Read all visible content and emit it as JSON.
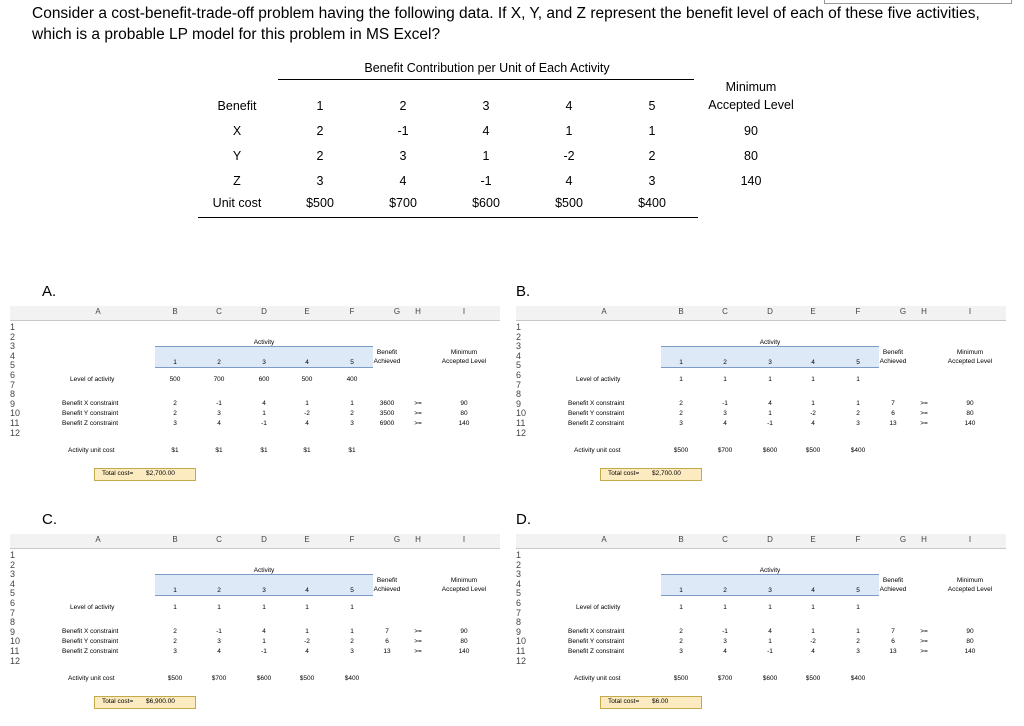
{
  "question": "Consider a cost-benefit-trade-off problem having the following data. If X, Y, and Z represent the benefit level of each of these five activities, which is a probable LP model for this problem in MS Excel?",
  "data_table": {
    "group_header": "Benefit Contribution per Unit of Each Activity",
    "min_header": "Minimum Accepted Level",
    "row_label_header": "Benefit",
    "activities": [
      "1",
      "2",
      "3",
      "4",
      "5"
    ],
    "rows": [
      {
        "label": "X",
        "values": [
          "2",
          "-1",
          "4",
          "1",
          "1"
        ],
        "min": "90"
      },
      {
        "label": "Y",
        "values": [
          "2",
          "3",
          "1",
          "-2",
          "2"
        ],
        "min": "80"
      },
      {
        "label": "Z",
        "values": [
          "3",
          "4",
          "-1",
          "4",
          "3"
        ],
        "min": "140"
      }
    ],
    "cost_label": "Unit cost",
    "costs": [
      "$500",
      "$700",
      "$600",
      "$500",
      "$400"
    ]
  },
  "sheet_common": {
    "col_letters": [
      "A",
      "B",
      "C",
      "D",
      "E",
      "F",
      "G",
      "H",
      "I"
    ],
    "row_numbers": [
      "1",
      "2",
      "3",
      "4",
      "5",
      "6",
      "7",
      "8",
      "9",
      "10",
      "11",
      "12"
    ],
    "activity_label": "Activity",
    "activity_nums": [
      "1",
      "2",
      "3",
      "4",
      "5"
    ],
    "benefit_achieved": [
      "Benefit",
      "Achieved"
    ],
    "minimum_level": [
      "Minimum",
      "Accepted Level"
    ],
    "level_label": "Level of activity",
    "constraint_labels": [
      "Benefit X constraint",
      "Benefit Y constraint",
      "Benefit Z constraint"
    ],
    "coef": [
      [
        "2",
        "-1",
        "4",
        "1",
        "1"
      ],
      [
        "2",
        "3",
        "1",
        "-2",
        "2"
      ],
      [
        "3",
        "4",
        "-1",
        "4",
        "3"
      ]
    ],
    "ge": ">=",
    "mins": [
      "90",
      "80",
      "140"
    ],
    "unit_cost_label": "Activity unit cost",
    "total_cost_label": "Total cost="
  },
  "options": [
    {
      "letter": "A.",
      "levels": [
        "500",
        "700",
        "600",
        "500",
        "400"
      ],
      "achieved": [
        "3600",
        "3500",
        "6900"
      ],
      "unit_costs": [
        "$1",
        "$1",
        "$1",
        "$1",
        "$1"
      ],
      "total_cost": "$2,700.00"
    },
    {
      "letter": "B.",
      "levels": [
        "1",
        "1",
        "1",
        "1",
        "1"
      ],
      "achieved": [
        "7",
        "6",
        "13"
      ],
      "unit_costs": [
        "$500",
        "$700",
        "$600",
        "$500",
        "$400"
      ],
      "total_cost": "$2,700.00"
    },
    {
      "letter": "C.",
      "levels": [
        "1",
        "1",
        "1",
        "1",
        "1"
      ],
      "achieved": [
        "7",
        "6",
        "13"
      ],
      "unit_costs": [
        "$500",
        "$700",
        "$600",
        "$500",
        "$400"
      ],
      "total_cost": "$6,900.00"
    },
    {
      "letter": "D.",
      "levels": [
        "1",
        "1",
        "1",
        "1",
        "1"
      ],
      "achieved": [
        "7",
        "6",
        "13"
      ],
      "unit_costs": [
        "$500",
        "$700",
        "$600",
        "$500",
        "$400"
      ],
      "total_cost": "$6.00"
    }
  ]
}
